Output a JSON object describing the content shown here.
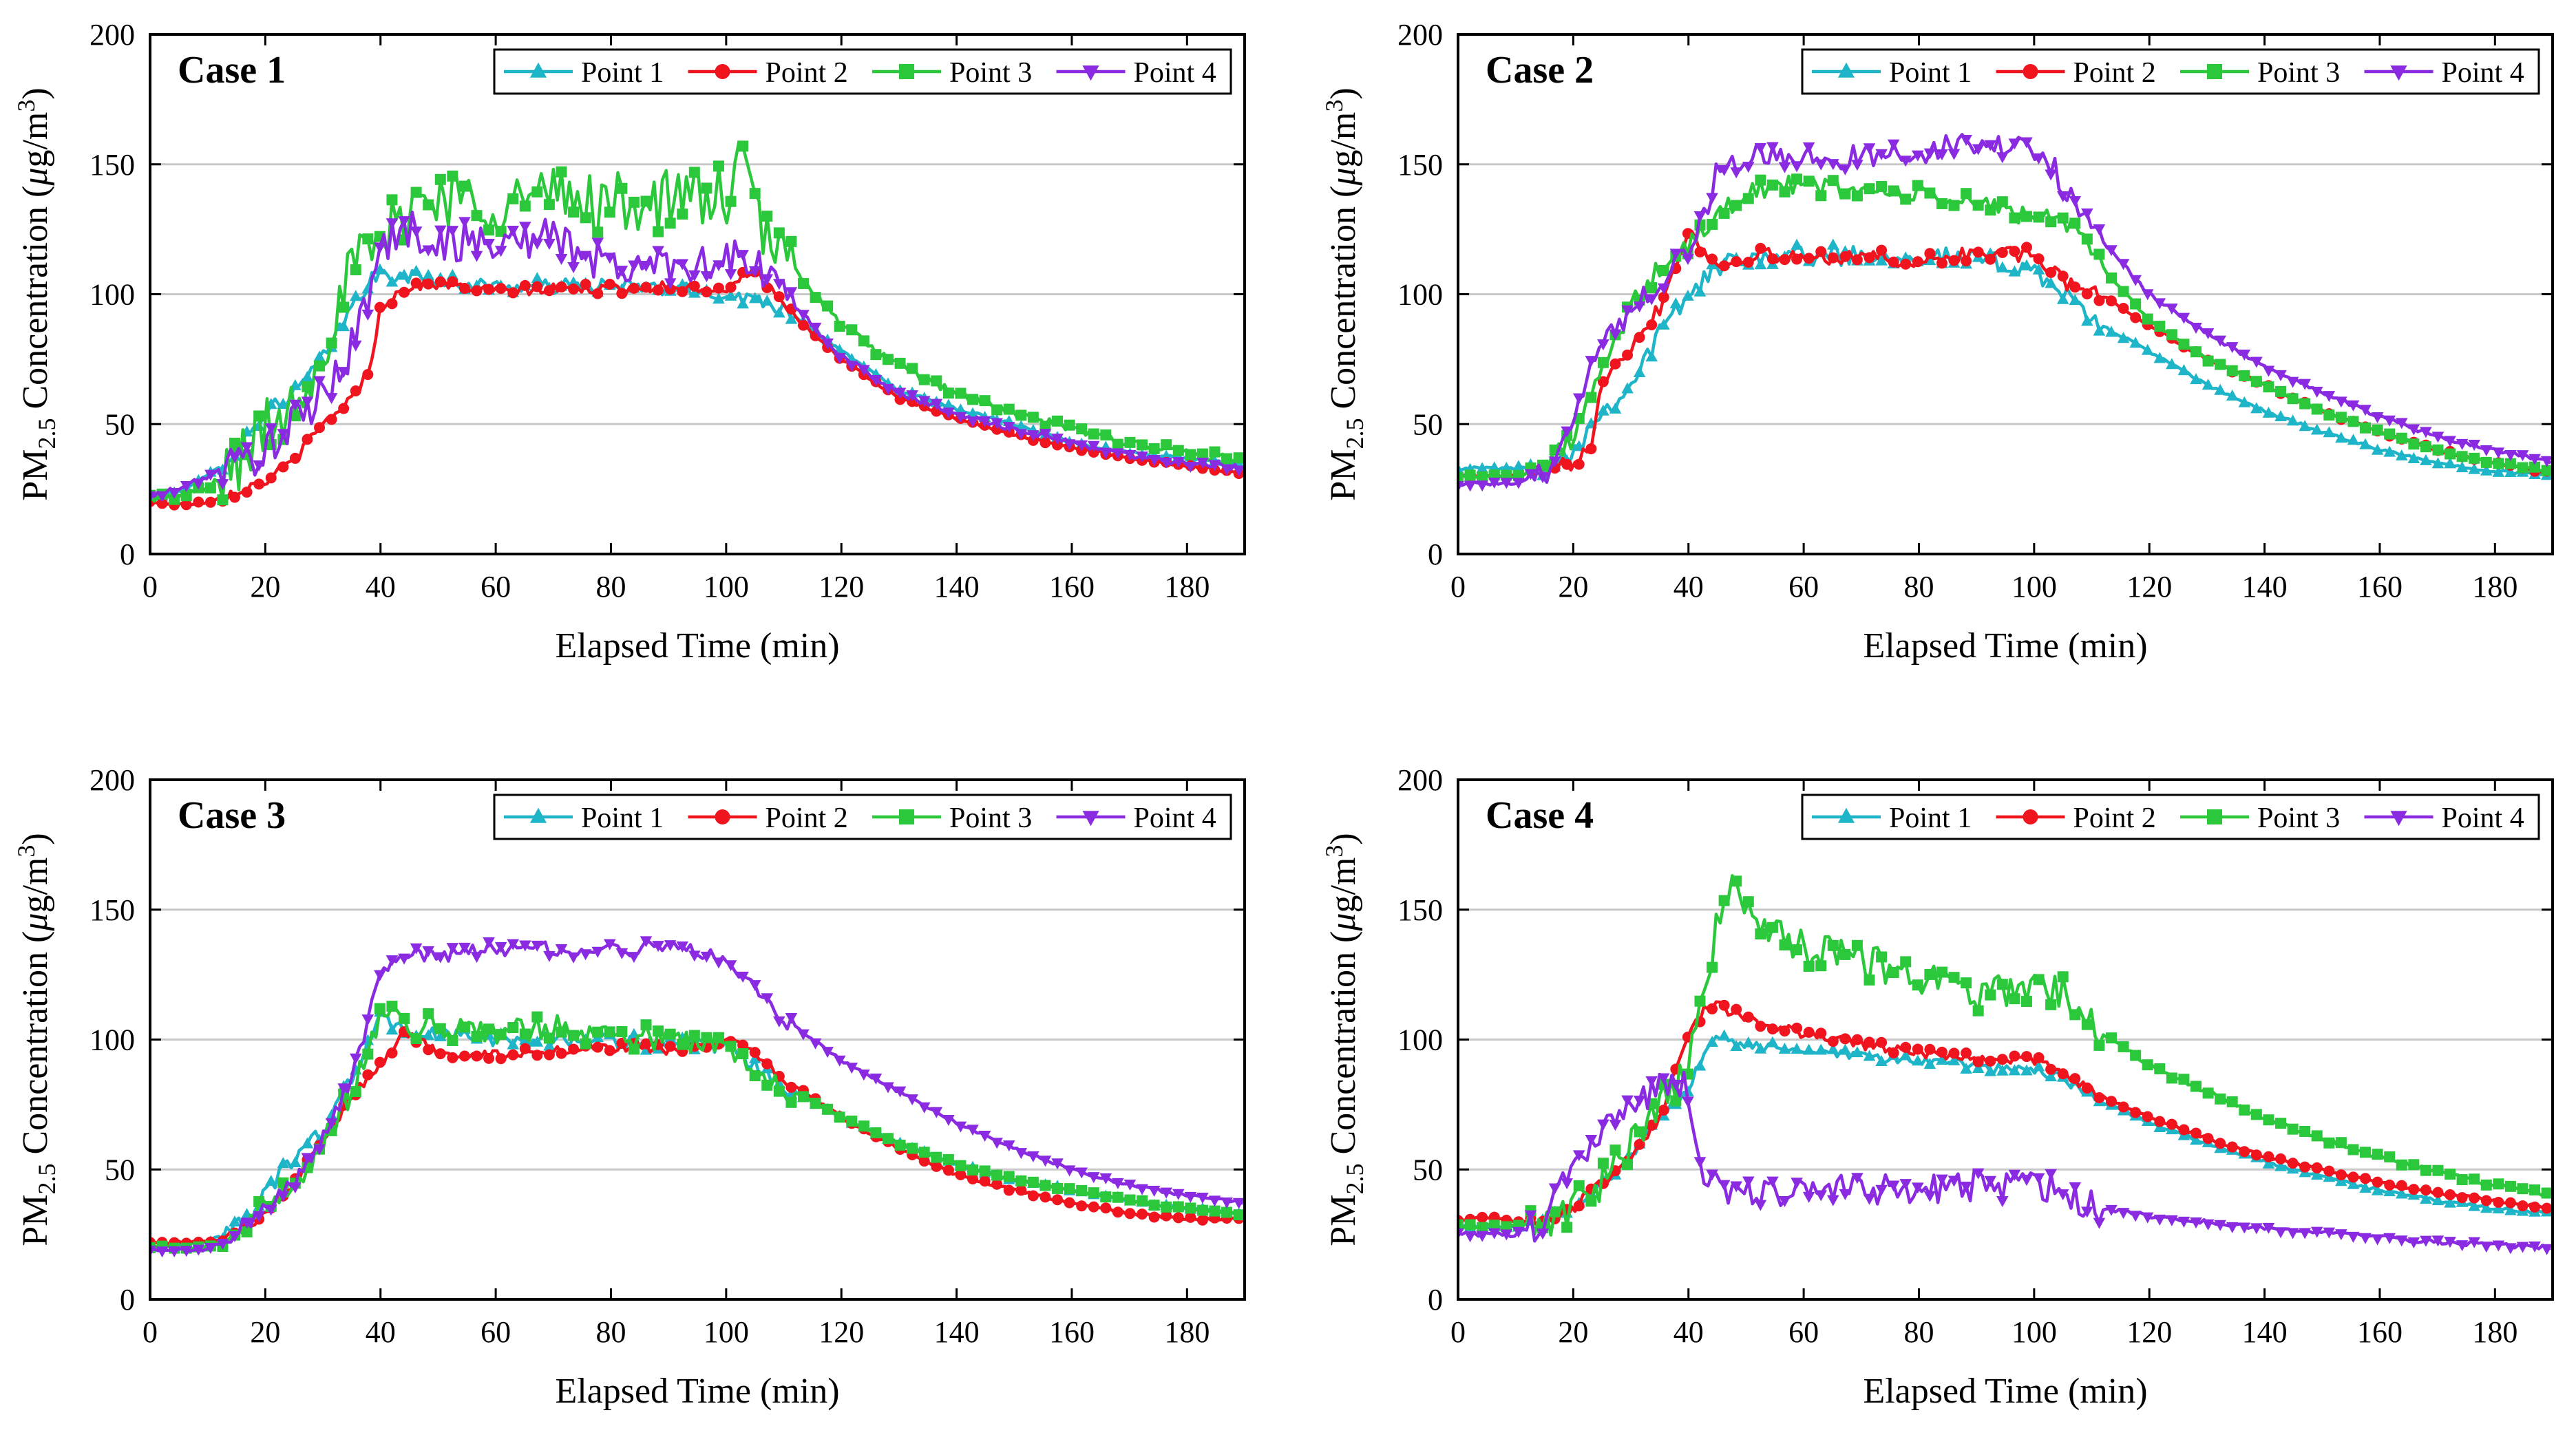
{
  "figure": {
    "series_names": [
      "Point 1",
      "Point 2",
      "Point 3",
      "Point 4"
    ],
    "colors": {
      "Point 1": "#1FB5C8",
      "Point 2": "#F0141E",
      "Point 3": "#2CC83C",
      "Point 4": "#8A2BE2"
    },
    "grid_color": "#c8c8c8",
    "y_label_prefix": "PM",
    "y_label_subscript": "2.5",
    "y_label_rest": " Concentration (",
    "y_label_mu": "μ",
    "y_label_unit": "g/m",
    "y_label_superscript": "3",
    "y_label_close": ")"
  },
  "chart_data": [
    {
      "type": "line",
      "title": "Case 1",
      "xlabel": "Elapsed Time (min)",
      "xlim": [
        0,
        190
      ],
      "ylim": [
        0,
        200
      ],
      "xticks": [
        0,
        20,
        40,
        60,
        80,
        100,
        120,
        140,
        160,
        180
      ],
      "yticks": [
        0,
        50,
        100,
        150,
        200
      ],
      "grid": "horizontal",
      "legend_position": "top",
      "series": [
        {
          "name": "Point 1",
          "marker": "triangle-up",
          "noise": 3,
          "x": [
            0,
            5,
            10,
            15,
            20,
            25,
            30,
            35,
            38,
            40,
            45,
            50,
            60,
            70,
            80,
            90,
            100,
            105,
            110,
            120,
            130,
            140,
            150,
            160,
            170,
            180,
            190
          ],
          "y": [
            22,
            24,
            30,
            40,
            55,
            62,
            75,
            95,
            105,
            107,
            107,
            105,
            103,
            103,
            103,
            102,
            100,
            98,
            95,
            78,
            63,
            56,
            50,
            43,
            39,
            37,
            34
          ]
        },
        {
          "name": "Point 2",
          "marker": "circle",
          "noise": 2,
          "x": [
            0,
            5,
            10,
            15,
            20,
            25,
            30,
            35,
            38,
            40,
            45,
            50,
            60,
            70,
            80,
            90,
            100,
            105,
            110,
            120,
            130,
            140,
            150,
            160,
            170,
            180,
            190
          ],
          "y": [
            20,
            19,
            20,
            24,
            28,
            36,
            50,
            60,
            70,
            95,
            103,
            104,
            101,
            102,
            102,
            103,
            102,
            110,
            95,
            75,
            60,
            52,
            46,
            41,
            37,
            34,
            31
          ]
        },
        {
          "name": "Point 3",
          "marker": "square",
          "noise": 12,
          "x": [
            0,
            5,
            10,
            15,
            20,
            25,
            30,
            35,
            38,
            40,
            45,
            50,
            60,
            70,
            80,
            90,
            100,
            103,
            106,
            110,
            120,
            130,
            140,
            150,
            160,
            170,
            180,
            190
          ],
          "y": [
            22,
            22,
            25,
            35,
            48,
            58,
            80,
            110,
            115,
            118,
            135,
            138,
            135,
            138,
            135,
            136,
            138,
            150,
            125,
            115,
            88,
            72,
            62,
            54,
            48,
            43,
            39,
            36
          ]
        },
        {
          "name": "Point 4",
          "marker": "triangle-down",
          "noise": 8,
          "x": [
            0,
            5,
            10,
            15,
            20,
            25,
            30,
            35,
            38,
            40,
            45,
            50,
            60,
            70,
            80,
            90,
            100,
            105,
            110,
            120,
            130,
            140,
            150,
            160,
            170,
            180,
            190
          ],
          "y": [
            22,
            25,
            30,
            35,
            40,
            50,
            60,
            80,
            100,
            118,
            125,
            120,
            120,
            122,
            110,
            112,
            113,
            112,
            100,
            76,
            62,
            54,
            48,
            43,
            38,
            35,
            33
          ]
        }
      ]
    },
    {
      "type": "line",
      "title": "Case 2",
      "xlabel": "Elapsed Time (min)",
      "xlim": [
        0,
        190
      ],
      "ylim": [
        0,
        200
      ],
      "xticks": [
        0,
        20,
        40,
        60,
        80,
        100,
        120,
        140,
        160,
        180
      ],
      "yticks": [
        0,
        50,
        100,
        150,
        200
      ],
      "grid": "horizontal",
      "legend_position": "top",
      "series": [
        {
          "name": "Point 1",
          "marker": "triangle-up",
          "noise": 4,
          "x": [
            0,
            10,
            15,
            20,
            25,
            30,
            35,
            40,
            45,
            50,
            60,
            70,
            80,
            90,
            100,
            105,
            110,
            120,
            130,
            140,
            150,
            160,
            170,
            180,
            190
          ],
          "y": [
            33,
            33,
            34,
            40,
            55,
            65,
            85,
            100,
            110,
            115,
            115,
            115,
            115,
            113,
            110,
            100,
            90,
            78,
            65,
            55,
            47,
            40,
            35,
            32,
            30
          ]
        },
        {
          "name": "Point 2",
          "marker": "circle",
          "noise": 3,
          "x": [
            0,
            10,
            15,
            20,
            23,
            25,
            30,
            35,
            40,
            45,
            50,
            60,
            70,
            80,
            90,
            100,
            105,
            110,
            120,
            130,
            140,
            150,
            160,
            170,
            180,
            190
          ],
          "y": [
            30,
            30,
            32,
            35,
            42,
            68,
            80,
            95,
            125,
            110,
            115,
            114,
            115,
            112,
            116,
            115,
            105,
            102,
            88,
            75,
            65,
            55,
            47,
            40,
            35,
            31
          ]
        },
        {
          "name": "Point 3",
          "marker": "square",
          "noise": 4,
          "x": [
            0,
            10,
            15,
            20,
            25,
            30,
            35,
            40,
            45,
            50,
            60,
            70,
            80,
            90,
            100,
            105,
            110,
            120,
            130,
            140,
            150,
            160,
            170,
            180,
            190
          ],
          "y": [
            30,
            30,
            33,
            45,
            70,
            95,
            110,
            118,
            130,
            140,
            142,
            140,
            138,
            135,
            130,
            130,
            115,
            90,
            75,
            65,
            55,
            47,
            40,
            35,
            32
          ]
        },
        {
          "name": "Point 4",
          "marker": "triangle-down",
          "noise": 5,
          "x": [
            0,
            10,
            15,
            20,
            25,
            30,
            35,
            40,
            43,
            45,
            50,
            60,
            70,
            80,
            90,
            100,
            103,
            110,
            120,
            130,
            140,
            150,
            160,
            170,
            180,
            190
          ],
          "y": [
            27,
            27,
            30,
            55,
            80,
            95,
            105,
            118,
            130,
            150,
            153,
            152,
            153,
            155,
            158,
            155,
            150,
            125,
            100,
            85,
            72,
            62,
            53,
            45,
            40,
            35
          ]
        }
      ]
    },
    {
      "type": "line",
      "title": "Case 3",
      "xlabel": "Elapsed Time (min)",
      "xlim": [
        0,
        190
      ],
      "ylim": [
        0,
        200
      ],
      "xticks": [
        0,
        20,
        40,
        60,
        80,
        100,
        120,
        140,
        160,
        180
      ],
      "yticks": [
        0,
        50,
        100,
        150,
        200
      ],
      "grid": "horizontal",
      "legend_position": "top",
      "series": [
        {
          "name": "Point 1",
          "marker": "triangle-up",
          "noise": 3,
          "x": [
            0,
            10,
            15,
            20,
            25,
            30,
            35,
            38,
            40,
            45,
            50,
            60,
            70,
            80,
            90,
            100,
            105,
            110,
            120,
            130,
            140,
            150,
            160,
            170,
            180,
            190
          ],
          "y": [
            20,
            22,
            28,
            40,
            55,
            65,
            85,
            100,
            108,
            103,
            102,
            100,
            100,
            100,
            98,
            97,
            90,
            82,
            70,
            60,
            52,
            46,
            42,
            38,
            35,
            33
          ]
        },
        {
          "name": "Point 2",
          "marker": "circle",
          "noise": 2,
          "x": [
            0,
            10,
            15,
            20,
            25,
            30,
            35,
            40,
            43,
            45,
            50,
            60,
            70,
            80,
            90,
            100,
            105,
            110,
            120,
            130,
            140,
            150,
            160,
            170,
            180,
            190
          ],
          "y": [
            22,
            22,
            25,
            32,
            45,
            60,
            78,
            90,
            100,
            102,
            95,
            94,
            96,
            97,
            96,
            99,
            95,
            85,
            70,
            58,
            48,
            42,
            37,
            33,
            31,
            31
          ]
        },
        {
          "name": "Point 3",
          "marker": "square",
          "noise": 5,
          "x": [
            0,
            10,
            15,
            20,
            25,
            30,
            35,
            40,
            45,
            50,
            60,
            70,
            80,
            90,
            100,
            105,
            110,
            120,
            130,
            140,
            150,
            160,
            170,
            180,
            190
          ],
          "y": [
            20,
            20,
            25,
            35,
            45,
            60,
            80,
            110,
            105,
            105,
            103,
            105,
            102,
            100,
            97,
            90,
            82,
            70,
            60,
            52,
            46,
            42,
            38,
            35,
            33
          ]
        },
        {
          "name": "Point 4",
          "marker": "triangle-down",
          "noise": 3,
          "x": [
            0,
            10,
            15,
            20,
            25,
            30,
            35,
            40,
            45,
            50,
            60,
            70,
            80,
            90,
            95,
            100,
            105,
            110,
            120,
            130,
            140,
            150,
            160,
            170,
            180,
            190
          ],
          "y": [
            19,
            19,
            26,
            35,
            45,
            62,
            85,
            125,
            133,
            132,
            135,
            135,
            134,
            136,
            135,
            130,
            120,
            108,
            92,
            80,
            68,
            58,
            50,
            44,
            40,
            37
          ]
        }
      ]
    },
    {
      "type": "line",
      "title": "Case 4",
      "xlabel": "Elapsed Time (min)",
      "xlim": [
        0,
        190
      ],
      "ylim": [
        0,
        200
      ],
      "xticks": [
        0,
        20,
        40,
        60,
        80,
        100,
        120,
        140,
        160,
        180
      ],
      "yticks": [
        0,
        50,
        100,
        150,
        200
      ],
      "grid": "horizontal",
      "legend_position": "top",
      "series": [
        {
          "name": "Point 1",
          "marker": "triangle-up",
          "noise": 2,
          "x": [
            0,
            10,
            15,
            20,
            25,
            30,
            35,
            40,
            43,
            45,
            50,
            60,
            70,
            80,
            90,
            100,
            105,
            110,
            120,
            130,
            140,
            150,
            160,
            170,
            180,
            190
          ],
          "y": [
            28,
            28,
            30,
            35,
            45,
            55,
            70,
            80,
            97,
            100,
            98,
            96,
            93,
            92,
            90,
            88,
            85,
            78,
            68,
            60,
            53,
            47,
            42,
            38,
            35,
            33
          ]
        },
        {
          "name": "Point 2",
          "marker": "circle",
          "noise": 2,
          "x": [
            0,
            5,
            10,
            15,
            20,
            25,
            30,
            35,
            40,
            43,
            45,
            50,
            60,
            70,
            80,
            90,
            100,
            105,
            110,
            120,
            130,
            140,
            150,
            160,
            170,
            180,
            190
          ],
          "y": [
            30,
            32,
            30,
            30,
            35,
            45,
            55,
            70,
            102,
            112,
            113,
            108,
            102,
            98,
            95,
            93,
            92,
            88,
            80,
            70,
            62,
            55,
            50,
            45,
            41,
            38,
            35
          ]
        },
        {
          "name": "Point 3",
          "marker": "square",
          "noise": 7,
          "x": [
            0,
            10,
            15,
            20,
            25,
            30,
            35,
            40,
            42,
            45,
            48,
            50,
            60,
            70,
            80,
            90,
            100,
            105,
            110,
            120,
            130,
            140,
            150,
            160,
            170,
            180,
            190
          ],
          "y": [
            28,
            28,
            30,
            35,
            45,
            60,
            75,
            90,
            108,
            145,
            158,
            150,
            135,
            130,
            125,
            118,
            118,
            120,
            105,
            90,
            80,
            70,
            62,
            55,
            49,
            44,
            40
          ]
        },
        {
          "name": "Point 4",
          "marker": "triangle-down",
          "noise": 6,
          "x": [
            0,
            10,
            15,
            20,
            25,
            30,
            35,
            38,
            40,
            42,
            45,
            50,
            60,
            70,
            80,
            90,
            100,
            105,
            110,
            120,
            130,
            140,
            150,
            160,
            170,
            180,
            190
          ],
          "y": [
            25,
            25,
            30,
            50,
            65,
            75,
            82,
            85,
            80,
            48,
            43,
            42,
            42,
            42,
            42,
            44,
            44,
            42,
            36,
            32,
            30,
            27,
            26,
            24,
            22,
            21,
            20
          ]
        }
      ]
    }
  ]
}
